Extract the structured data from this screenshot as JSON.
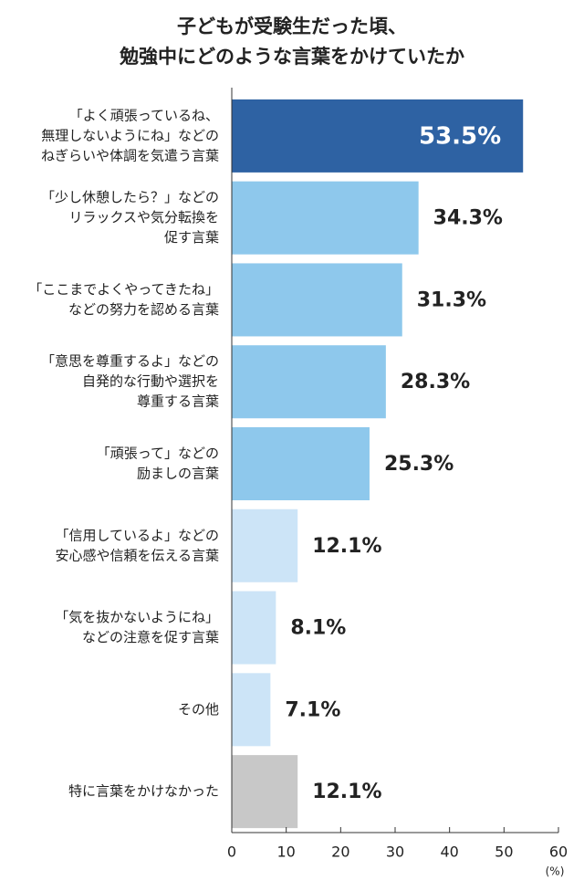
{
  "chart_data": {
    "type": "bar",
    "orientation": "horizontal",
    "title": [
      "子どもが受験生だった頃、",
      "勉強中にどのような言葉をかけていたか"
    ],
    "categories": [
      [
        "「よく頑張っているね、",
        "無理しないようにね」などの",
        "ねぎらいや体調を気遣う言葉"
      ],
      [
        "「少し休憩したら？」などの",
        "リラックスや気分転換を",
        "促す言葉"
      ],
      [
        "「ここまでよくやってきたね」",
        "などの努力を認める言葉"
      ],
      [
        "「意思を尊重するよ」などの",
        "自発的な行動や選択を",
        "尊重する言葉"
      ],
      [
        "「頑張って」などの",
        "励ましの言葉"
      ],
      [
        "「信用しているよ」などの",
        "安心感や信頼を伝える言葉"
      ],
      [
        "「気を抜かないようにね」",
        "などの注意を促す言葉"
      ],
      [
        "その他"
      ],
      [
        "特に言葉をかけなかった"
      ]
    ],
    "values": [
      53.5,
      34.3,
      31.3,
      28.3,
      25.3,
      12.1,
      8.1,
      7.1,
      12.1
    ],
    "value_labels": [
      "53.5%",
      "34.3%",
      "31.3%",
      "28.3%",
      "25.3%",
      "12.1%",
      "8.1%",
      "7.1%",
      "12.1%"
    ],
    "colors": [
      "#2e62a3",
      "#8ec8ec",
      "#8ec8ec",
      "#8ec8ec",
      "#8ec8ec",
      "#cce4f7",
      "#cce4f7",
      "#cce4f7",
      "#c8c8c8"
    ],
    "xlim": [
      0,
      60
    ],
    "xticks": [
      0,
      10,
      20,
      30,
      40,
      50,
      60
    ],
    "x_unit": "(%)"
  }
}
